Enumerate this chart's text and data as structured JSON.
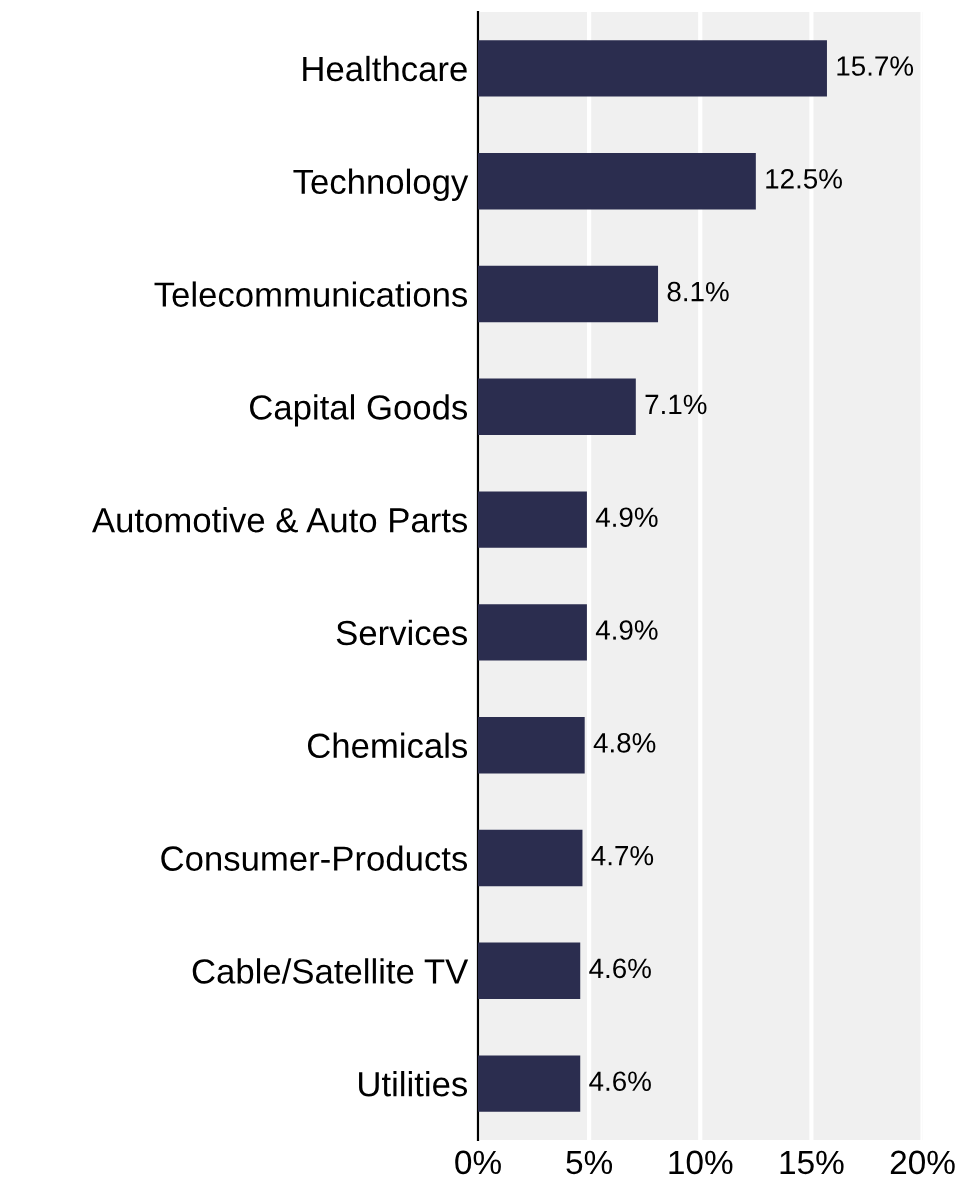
{
  "chart_data": {
    "type": "bar",
    "orientation": "horizontal",
    "categories": [
      "Healthcare",
      "Technology",
      "Telecommunications",
      "Capital Goods",
      "Automotive & Auto Parts",
      "Services",
      "Chemicals",
      "Consumer-Products",
      "Cable/Satellite TV",
      "Utilities"
    ],
    "values": [
      15.7,
      12.5,
      8.1,
      7.1,
      4.9,
      4.9,
      4.8,
      4.7,
      4.6,
      4.6
    ],
    "color": "#2b2d4f",
    "value_labels": [
      "15.7%",
      "12.5%",
      "8.1%",
      "7.1%",
      "4.9%",
      "4.9%",
      "4.8%",
      "4.7%",
      "4.6%",
      "4.6%"
    ],
    "xlim": [
      0,
      20
    ],
    "xticks": [
      {
        "value": 0,
        "label": "0%"
      },
      {
        "value": 5,
        "label": "5%"
      },
      {
        "value": 10,
        "label": "10%"
      },
      {
        "value": 15,
        "label": "15%"
      },
      {
        "value": 20,
        "label": "20%"
      }
    ],
    "grid": "x"
  }
}
